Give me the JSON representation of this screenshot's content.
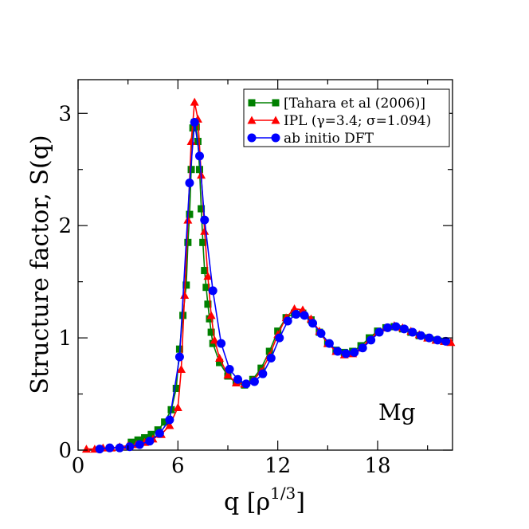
{
  "chart_data": {
    "type": "line",
    "xlabel_main": "q [ρ",
    "xlabel_sup": "1/3",
    "xlabel_close": "]",
    "ylabel": "Structure factor, S(q)",
    "xlim": [
      0,
      22.5
    ],
    "ylim": [
      0,
      3.3
    ],
    "x_ticks": [
      0,
      6,
      12,
      18
    ],
    "y_ticks": [
      0,
      1,
      2,
      3
    ],
    "x_tick_labels": [
      "0",
      "6",
      "12",
      "18"
    ],
    "y_tick_labels": [
      "0",
      "1",
      "2",
      "3"
    ],
    "grid": false,
    "legend_position": "top-right",
    "annotation": "Mg",
    "series": [
      {
        "name": "[Tahara et al (2006)]",
        "color": "#008000",
        "marker": "square",
        "points": [
          [
            3.2,
            0.07
          ],
          [
            3.6,
            0.09
          ],
          [
            4.0,
            0.11
          ],
          [
            4.4,
            0.14
          ],
          [
            4.8,
            0.18
          ],
          [
            5.2,
            0.25
          ],
          [
            5.6,
            0.36
          ],
          [
            5.9,
            0.55
          ],
          [
            6.1,
            0.9
          ],
          [
            6.3,
            1.2
          ],
          [
            6.5,
            1.47
          ],
          [
            6.6,
            1.85
          ],
          [
            6.7,
            2.1
          ],
          [
            6.8,
            2.5
          ],
          [
            6.9,
            2.87
          ],
          [
            7.0,
            2.92
          ],
          [
            7.1,
            2.88
          ],
          [
            7.2,
            2.75
          ],
          [
            7.3,
            2.5
          ],
          [
            7.4,
            2.15
          ],
          [
            7.5,
            1.85
          ],
          [
            7.6,
            1.6
          ],
          [
            7.7,
            1.45
          ],
          [
            7.8,
            1.3
          ],
          [
            7.9,
            1.17
          ],
          [
            8.0,
            1.05
          ],
          [
            8.1,
            0.95
          ],
          [
            8.5,
            0.78
          ],
          [
            9.0,
            0.66
          ],
          [
            9.5,
            0.6
          ],
          [
            10.0,
            0.58
          ],
          [
            10.5,
            0.63
          ],
          [
            11.0,
            0.73
          ],
          [
            11.5,
            0.88
          ],
          [
            12.0,
            1.06
          ],
          [
            12.5,
            1.18
          ],
          [
            13.0,
            1.22
          ],
          [
            13.5,
            1.22
          ],
          [
            14.0,
            1.16
          ],
          [
            14.5,
            1.05
          ],
          [
            15.0,
            0.95
          ],
          [
            15.5,
            0.89
          ],
          [
            16.0,
            0.87
          ],
          [
            16.5,
            0.88
          ],
          [
            17.0,
            0.93
          ],
          [
            17.5,
            1.0
          ],
          [
            18.0,
            1.06
          ],
          [
            18.5,
            1.09
          ],
          [
            19.0,
            1.1
          ],
          [
            19.5,
            1.08
          ],
          [
            20.0,
            1.05
          ],
          [
            20.5,
            1.02
          ],
          [
            21.0,
            1.0
          ],
          [
            21.5,
            0.98
          ],
          [
            22.0,
            0.97
          ]
        ]
      },
      {
        "name": "IPL (γ=3.4; σ=1.094)",
        "color": "#ff0000",
        "marker": "triangle",
        "points": [
          [
            0.5,
            0.01
          ],
          [
            1.0,
            0.01
          ],
          [
            1.5,
            0.02
          ],
          [
            2.0,
            0.02
          ],
          [
            2.5,
            0.03
          ],
          [
            3.0,
            0.04
          ],
          [
            3.5,
            0.05
          ],
          [
            4.0,
            0.07
          ],
          [
            4.5,
            0.1
          ],
          [
            5.0,
            0.14
          ],
          [
            5.5,
            0.22
          ],
          [
            6.0,
            0.38
          ],
          [
            6.2,
            0.72
          ],
          [
            6.4,
            1.38
          ],
          [
            6.6,
            2.05
          ],
          [
            6.8,
            2.75
          ],
          [
            7.0,
            3.1
          ],
          [
            7.2,
            2.95
          ],
          [
            7.4,
            2.45
          ],
          [
            7.6,
            1.95
          ],
          [
            7.8,
            1.55
          ],
          [
            8.0,
            1.2
          ],
          [
            8.2,
            0.98
          ],
          [
            8.5,
            0.82
          ],
          [
            9.0,
            0.67
          ],
          [
            9.5,
            0.6
          ],
          [
            10.0,
            0.59
          ],
          [
            10.5,
            0.62
          ],
          [
            11.0,
            0.7
          ],
          [
            11.5,
            0.84
          ],
          [
            12.0,
            1.03
          ],
          [
            12.5,
            1.18
          ],
          [
            13.0,
            1.26
          ],
          [
            13.5,
            1.25
          ],
          [
            14.0,
            1.17
          ],
          [
            14.5,
            1.06
          ],
          [
            15.0,
            0.95
          ],
          [
            15.5,
            0.88
          ],
          [
            16.0,
            0.85
          ],
          [
            16.5,
            0.86
          ],
          [
            17.0,
            0.91
          ],
          [
            17.5,
            0.98
          ],
          [
            18.0,
            1.05
          ],
          [
            18.5,
            1.09
          ],
          [
            19.0,
            1.11
          ],
          [
            19.5,
            1.09
          ],
          [
            20.0,
            1.06
          ],
          [
            20.5,
            1.03
          ],
          [
            21.0,
            1.0
          ],
          [
            21.5,
            0.98
          ],
          [
            22.0,
            0.97
          ],
          [
            22.4,
            0.96
          ]
        ]
      },
      {
        "name": "ab initio DFT",
        "color": "#0000ff",
        "marker": "circle",
        "points": [
          [
            1.3,
            0.01
          ],
          [
            1.9,
            0.02
          ],
          [
            2.5,
            0.02
          ],
          [
            3.1,
            0.03
          ],
          [
            3.7,
            0.05
          ],
          [
            4.3,
            0.08
          ],
          [
            4.9,
            0.15
          ],
          [
            5.5,
            0.27
          ],
          [
            6.1,
            0.83
          ],
          [
            6.7,
            2.38
          ],
          [
            7.0,
            2.92
          ],
          [
            7.3,
            2.62
          ],
          [
            7.6,
            2.05
          ],
          [
            8.1,
            1.42
          ],
          [
            8.6,
            0.95
          ],
          [
            9.1,
            0.72
          ],
          [
            9.6,
            0.63
          ],
          [
            10.1,
            0.59
          ],
          [
            10.6,
            0.61
          ],
          [
            11.1,
            0.68
          ],
          [
            11.6,
            0.82
          ],
          [
            12.1,
            1.0
          ],
          [
            12.6,
            1.15
          ],
          [
            13.1,
            1.21
          ],
          [
            13.6,
            1.2
          ],
          [
            14.1,
            1.13
          ],
          [
            14.6,
            1.04
          ],
          [
            15.1,
            0.95
          ],
          [
            15.6,
            0.88
          ],
          [
            16.1,
            0.86
          ],
          [
            16.6,
            0.87
          ],
          [
            17.1,
            0.91
          ],
          [
            17.6,
            0.98
          ],
          [
            18.1,
            1.05
          ],
          [
            18.6,
            1.09
          ],
          [
            19.1,
            1.1
          ],
          [
            19.6,
            1.08
          ],
          [
            20.1,
            1.05
          ],
          [
            20.6,
            1.02
          ],
          [
            21.1,
            1.0
          ],
          [
            21.6,
            0.98
          ],
          [
            22.1,
            0.97
          ]
        ]
      }
    ]
  }
}
